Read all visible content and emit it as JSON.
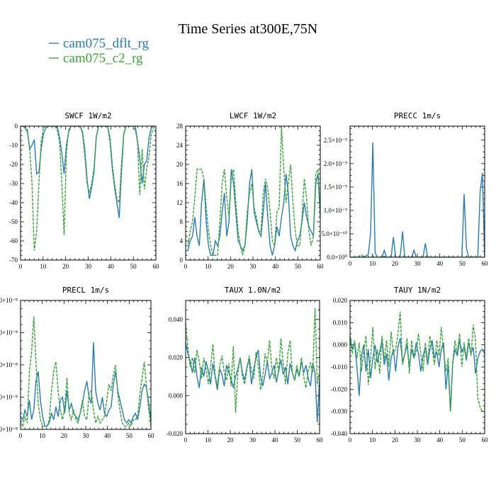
{
  "figure": {
    "title": "Time Series at300E,75N",
    "legend": [
      {
        "label": "cam075_dflt_rg",
        "color": "#2a7ab0",
        "dash": "solid"
      },
      {
        "label": "cam075_c2_rg",
        "color": "#3aa23a",
        "dash": "dashed"
      }
    ]
  },
  "chart_data": [
    {
      "type": "line",
      "title": "SWCF   1W/m2",
      "xlim": [
        0,
        60
      ],
      "ylim": [
        -70,
        0
      ],
      "xticks": [
        0,
        10,
        20,
        30,
        40,
        50,
        60
      ],
      "xtick_labels": [
        "0",
        "10",
        "20",
        "30",
        "40",
        "50",
        "60"
      ],
      "yticks": [
        0,
        -10,
        -20,
        -30,
        -40,
        -50,
        -60,
        -70
      ],
      "ytick_labels": [
        "0",
        "-10",
        "-20",
        "-30",
        "-40",
        "-50",
        "-60",
        "-70"
      ],
      "series": [
        {
          "name": "cam075_dflt_rg",
          "values": [
            0,
            0,
            -1,
            -3,
            -12,
            -10,
            -7,
            -25,
            -24,
            -12,
            -4,
            -1,
            0,
            0,
            0,
            0,
            0,
            -6,
            -14,
            -25,
            -10,
            -3,
            0,
            0,
            0,
            0,
            0,
            -3,
            -12,
            -28,
            -38,
            -32,
            -24,
            -6,
            0,
            0,
            0,
            0,
            0,
            -8,
            -22,
            -32,
            -40,
            -48,
            -24,
            -4,
            0,
            0,
            0,
            0,
            0,
            -8,
            -17,
            -30,
            -20,
            -18,
            -6,
            -1,
            0,
            0
          ]
        },
        {
          "name": "cam075_c2_rg",
          "values": [
            0,
            0,
            0,
            -2,
            -12,
            -30,
            -65,
            -55,
            -30,
            -8,
            -1,
            0,
            0,
            0,
            0,
            0,
            -2,
            -8,
            -30,
            -57,
            -14,
            -2,
            0,
            0,
            0,
            0,
            0,
            -4,
            -15,
            -30,
            -35,
            -30,
            -22,
            -6,
            0,
            0,
            0,
            0,
            0,
            -6,
            -20,
            -30,
            -38,
            -40,
            -20,
            -4,
            0,
            0,
            0,
            0,
            -2,
            -8,
            -36,
            -12,
            -33,
            -22,
            -16,
            -4,
            -1,
            0
          ]
        }
      ]
    },
    {
      "type": "line",
      "title": "LWCF   1W/m2",
      "xlim": [
        0,
        60
      ],
      "ylim": [
        0,
        28
      ],
      "xticks": [
        0,
        10,
        20,
        30,
        40,
        50,
        60
      ],
      "xtick_labels": [
        "0",
        "10",
        "20",
        "30",
        "40",
        "50",
        "60"
      ],
      "yticks": [
        0,
        4,
        8,
        12,
        16,
        20,
        24,
        28
      ],
      "ytick_labels": [
        "0",
        "4",
        "8",
        "12",
        "16",
        "20",
        "24",
        "28"
      ],
      "series": [
        {
          "name": "cam075_dflt_rg",
          "values": [
            2,
            2,
            4,
            5,
            9,
            5,
            3,
            12,
            17,
            8,
            3,
            1,
            1,
            4,
            3,
            5,
            10,
            14,
            5,
            8,
            19,
            16,
            10,
            4,
            3,
            2,
            3,
            8,
            16,
            19,
            10,
            8,
            6,
            5,
            10,
            16,
            9,
            3,
            1,
            3,
            7,
            5,
            9,
            12,
            18,
            14,
            5,
            3,
            2,
            4,
            5,
            8,
            12,
            9,
            7,
            6,
            5,
            16,
            18,
            9
          ]
        },
        {
          "name": "cam075_c2_rg",
          "values": [
            3,
            3,
            6,
            8,
            13,
            19,
            19,
            19,
            17,
            11,
            6,
            3,
            1,
            1,
            1,
            8,
            16,
            19,
            13,
            9,
            17,
            19,
            12,
            6,
            3,
            1,
            3,
            10,
            14,
            16,
            11,
            9,
            6,
            6,
            14,
            17,
            15,
            10,
            4,
            3,
            10,
            11,
            28,
            19,
            12,
            16,
            20,
            12,
            6,
            3,
            3,
            9,
            17,
            13,
            6,
            3,
            5,
            18,
            19,
            10
          ]
        }
      ]
    },
    {
      "type": "line",
      "title": "PRECC   1m/s",
      "xlim": [
        0,
        60
      ],
      "ylim": [
        0,
        2.8e-09
      ],
      "xticks": [
        0,
        10,
        20,
        30,
        40,
        50,
        60
      ],
      "xtick_labels": [
        "0",
        "10",
        "20",
        "30",
        "40",
        "50",
        "60"
      ],
      "yticks": [
        0,
        5e-10,
        1e-09,
        1.5e-09,
        2e-09,
        2.5e-09
      ],
      "ytick_labels": [
        "0.0×10⁰",
        "5.0×10⁻¹⁰",
        "1.0×10⁻⁹",
        "1.5×10⁻⁹",
        "2.0×10⁻⁹",
        "2.5×10⁻⁹"
      ],
      "series": [
        {
          "name": "cam075_dflt_rg",
          "values": [
            0,
            0,
            0,
            0,
            0,
            0,
            0,
            3e-11,
            6e-11,
            5e-10,
            2.45e-09,
            1e-10,
            0,
            0,
            0,
            1.5e-10,
            0,
            0,
            0,
            4.3e-10,
            0,
            0,
            0,
            5.5e-10,
            0,
            0,
            0,
            0,
            1.5e-10,
            0,
            0,
            0,
            0,
            3e-10,
            0,
            0,
            0,
            0,
            0,
            0,
            0,
            0,
            0,
            0,
            0,
            0,
            0,
            0,
            0,
            0,
            1.35e-09,
            2e-10,
            0,
            0,
            0,
            0,
            0,
            1.4e-09,
            1.8e-09,
            0
          ]
        },
        {
          "name": "cam075_c2_rg",
          "values": [
            0,
            0,
            0,
            0,
            2e-11,
            5e-11,
            0,
            0,
            0,
            0,
            3e-11,
            0,
            0,
            0,
            0,
            2e-11,
            0,
            0,
            0,
            0,
            0,
            0,
            2e-11,
            0,
            0,
            0,
            0,
            0,
            0,
            0,
            0,
            2e-11,
            0,
            0,
            0,
            0,
            0,
            0,
            0,
            0,
            0,
            0,
            0,
            0,
            0,
            0,
            0,
            0,
            0,
            0,
            0,
            0,
            0,
            2e-11,
            0,
            0,
            0,
            0,
            0,
            0
          ]
        }
      ]
    },
    {
      "type": "line",
      "title": "PRECL   1m/s",
      "xlim": [
        0,
        60
      ],
      "ylim": [
        0,
        4
      ],
      "xticks": [
        0,
        10,
        20,
        30,
        40,
        50,
        60
      ],
      "xtick_labels": [
        "0",
        "10",
        "20",
        "30",
        "40",
        "50",
        "60"
      ],
      "yticks": [
        0,
        1,
        2,
        3,
        4
      ],
      "ytick_labels": [
        "0×10⁻⁸",
        "0×10⁻⁸",
        "0×10⁻⁸",
        "0×10⁻⁸",
        "0×10⁻⁸"
      ],
      "series": [
        {
          "name": "cam075_dflt_rg",
          "values": [
            0.4,
            0.3,
            0.6,
            0.4,
            0.9,
            0.3,
            0.6,
            1.5,
            1.8,
            0.9,
            0.4,
            0.1,
            0.1,
            0.2,
            0.5,
            0.3,
            0.7,
            0.4,
            0.9,
            1.0,
            0.5,
            1.2,
            0.6,
            0.8,
            0.5,
            0.4,
            0.3,
            0.5,
            0.8,
            1.2,
            1.5,
            1.0,
            0.8,
            2.7,
            1.2,
            0.8,
            0.6,
            1.0,
            0.5,
            0.4,
            0.6,
            0.7,
            1.4,
            1.8,
            1.2,
            0.9,
            0.6,
            0.3,
            0.2,
            0.3,
            0.2,
            0.4,
            0.5,
            0.3,
            0.7,
            1.2,
            1.4,
            1.3,
            0.8,
            0.3
          ]
        },
        {
          "name": "cam075_c2_rg",
          "values": [
            0.2,
            0.1,
            0.4,
            0.2,
            1.8,
            2.4,
            3.5,
            2.1,
            0.8,
            0.3,
            0.1,
            0.1,
            0.1,
            0.3,
            1.2,
            1.8,
            2.1,
            1.2,
            0.6,
            0.3,
            0.7,
            1.6,
            0.5,
            0.3,
            0.6,
            0.3,
            0.2,
            0.5,
            0.9,
            0.4,
            0.3,
            1.1,
            1.2,
            0.6,
            0.2,
            0.4,
            0.2,
            0.3,
            0.4,
            0.9,
            1.4,
            1.2,
            1.7,
            2.0,
            1.1,
            0.6,
            0.2,
            0.1,
            0.1,
            0.2,
            0.1,
            0.3,
            0.3,
            0.4,
            1.1,
            1.6,
            2.1,
            1.3,
            0.6,
            0.1
          ]
        }
      ]
    },
    {
      "type": "line",
      "title": "TAUX   1.0N/m2",
      "xlim": [
        0,
        60
      ],
      "ylim": [
        -0.02,
        0.05
      ],
      "xticks": [
        0,
        10,
        20,
        30,
        40,
        50,
        60
      ],
      "xtick_labels": [
        "0",
        "10",
        "20",
        "30",
        "40",
        "50",
        "60"
      ],
      "yticks": [
        -0.02,
        0,
        0.02,
        0.04
      ],
      "ytick_labels": [
        "-0.020",
        "0.000",
        "0.020",
        "0.040"
      ],
      "series": [
        {
          "name": "cam075_dflt_rg",
          "values": [
            0.028,
            0.022,
            0.018,
            0.012,
            0.02,
            0.01,
            0.004,
            0.015,
            0.01,
            0.018,
            0.013,
            0.006,
            0.017,
            0.01,
            0.003,
            0.014,
            0.011,
            0.005,
            0.016,
            0.012,
            0.009,
            0.004,
            0.01,
            0.014,
            0.02,
            0.012,
            0.008,
            0.015,
            0.019,
            0.006,
            0.014,
            0.02,
            0.024,
            0.01,
            0.005,
            0.011,
            0.018,
            0.009,
            0.012,
            0.016,
            0.007,
            0.013,
            0.019,
            0.011,
            0.015,
            0.006,
            0.017,
            0.012,
            0.008,
            0.014,
            0.01,
            0.018,
            0.012,
            0.016,
            0.009,
            0.005,
            0.017,
            0.012,
            -0.014,
            0.008
          ]
        },
        {
          "name": "cam075_c2_rg",
          "values": [
            0.038,
            0.025,
            0.015,
            0.02,
            0.012,
            0.024,
            0.018,
            0.009,
            0.02,
            0.014,
            0.006,
            0.015,
            0.027,
            0.011,
            0.005,
            0.016,
            0.021,
            0.012,
            0.008,
            0.017,
            0.005,
            0.026,
            -0.009,
            0.012,
            0.02,
            0.01,
            0.006,
            0.014,
            0.021,
            0.013,
            0.009,
            0.023,
            0.016,
            0.003,
            0.01,
            0.022,
            0.017,
            0.029,
            0.014,
            0.009,
            0.02,
            0.012,
            0.03,
            0.017,
            0.006,
            0.022,
            0.029,
            0.012,
            0.008,
            0.016,
            0.01,
            0.02,
            0.01,
            0.004,
            0.013,
            0.017,
            0.012,
            0.046,
            0.006,
            0.012
          ]
        }
      ]
    },
    {
      "type": "line",
      "title": "TAUY   1N/m2",
      "xlim": [
        0,
        60
      ],
      "ylim": [
        -0.04,
        0.02
      ],
      "xticks": [
        0,
        10,
        20,
        30,
        40,
        50,
        60
      ],
      "xtick_labels": [
        "0",
        "10",
        "20",
        "30",
        "40",
        "50",
        "60"
      ],
      "yticks": [
        -0.04,
        -0.03,
        -0.02,
        -0.01,
        0,
        0.01,
        0.02
      ],
      "ytick_labels": [
        "-0.040",
        "-0.030",
        "-0.020",
        "-0.010",
        "0.000",
        "0.010",
        "0.020"
      ],
      "series": [
        {
          "name": "cam075_dflt_rg",
          "values": [
            0.004,
            -0.002,
            0.001,
            -0.01,
            -0.023,
            -0.005,
            0.0,
            -0.012,
            -0.002,
            -0.015,
            -0.006,
            0.0,
            -0.008,
            -0.003,
            0.002,
            -0.009,
            -0.004,
            -0.016,
            -0.006,
            -0.002,
            -0.012,
            -0.001,
            0.003,
            -0.008,
            -0.004,
            0.0,
            -0.01,
            -0.002,
            -0.006,
            0.001,
            -0.004,
            -0.012,
            -0.005,
            -0.001,
            -0.009,
            -0.002,
            0.002,
            -0.006,
            -0.003,
            -0.01,
            -0.002,
            0.001,
            -0.02,
            -0.009,
            -0.03,
            -0.008,
            -0.002,
            -0.005,
            0.002,
            -0.003,
            -0.001,
            -0.007,
            0.001,
            -0.004,
            -0.001,
            -0.013,
            -0.006,
            -0.003,
            -0.002,
            -0.004
          ]
        },
        {
          "name": "cam075_c2_rg",
          "values": [
            0.003,
            -0.004,
            0.002,
            -0.006,
            0.001,
            -0.012,
            -0.003,
            0.004,
            -0.018,
            -0.006,
            0.008,
            -0.011,
            -0.002,
            -0.013,
            0.004,
            -0.007,
            0.002,
            -0.01,
            0.006,
            -0.004,
            -0.002,
            0.005,
            0.015,
            -0.009,
            -0.004,
            0.003,
            -0.013,
            0.002,
            -0.006,
            -0.003,
            0.005,
            -0.004,
            -0.012,
            0.001,
            -0.008,
            0.004,
            -0.002,
            -0.009,
            0.002,
            -0.005,
            0.008,
            -0.003,
            -0.012,
            -0.006,
            -0.03,
            -0.008,
            0.002,
            -0.004,
            0.005,
            -0.01,
            0.001,
            -0.006,
            0.003,
            -0.005,
            0.009,
            0.002,
            -0.024,
            -0.028,
            -0.03,
            -0.03
          ]
        }
      ]
    }
  ]
}
